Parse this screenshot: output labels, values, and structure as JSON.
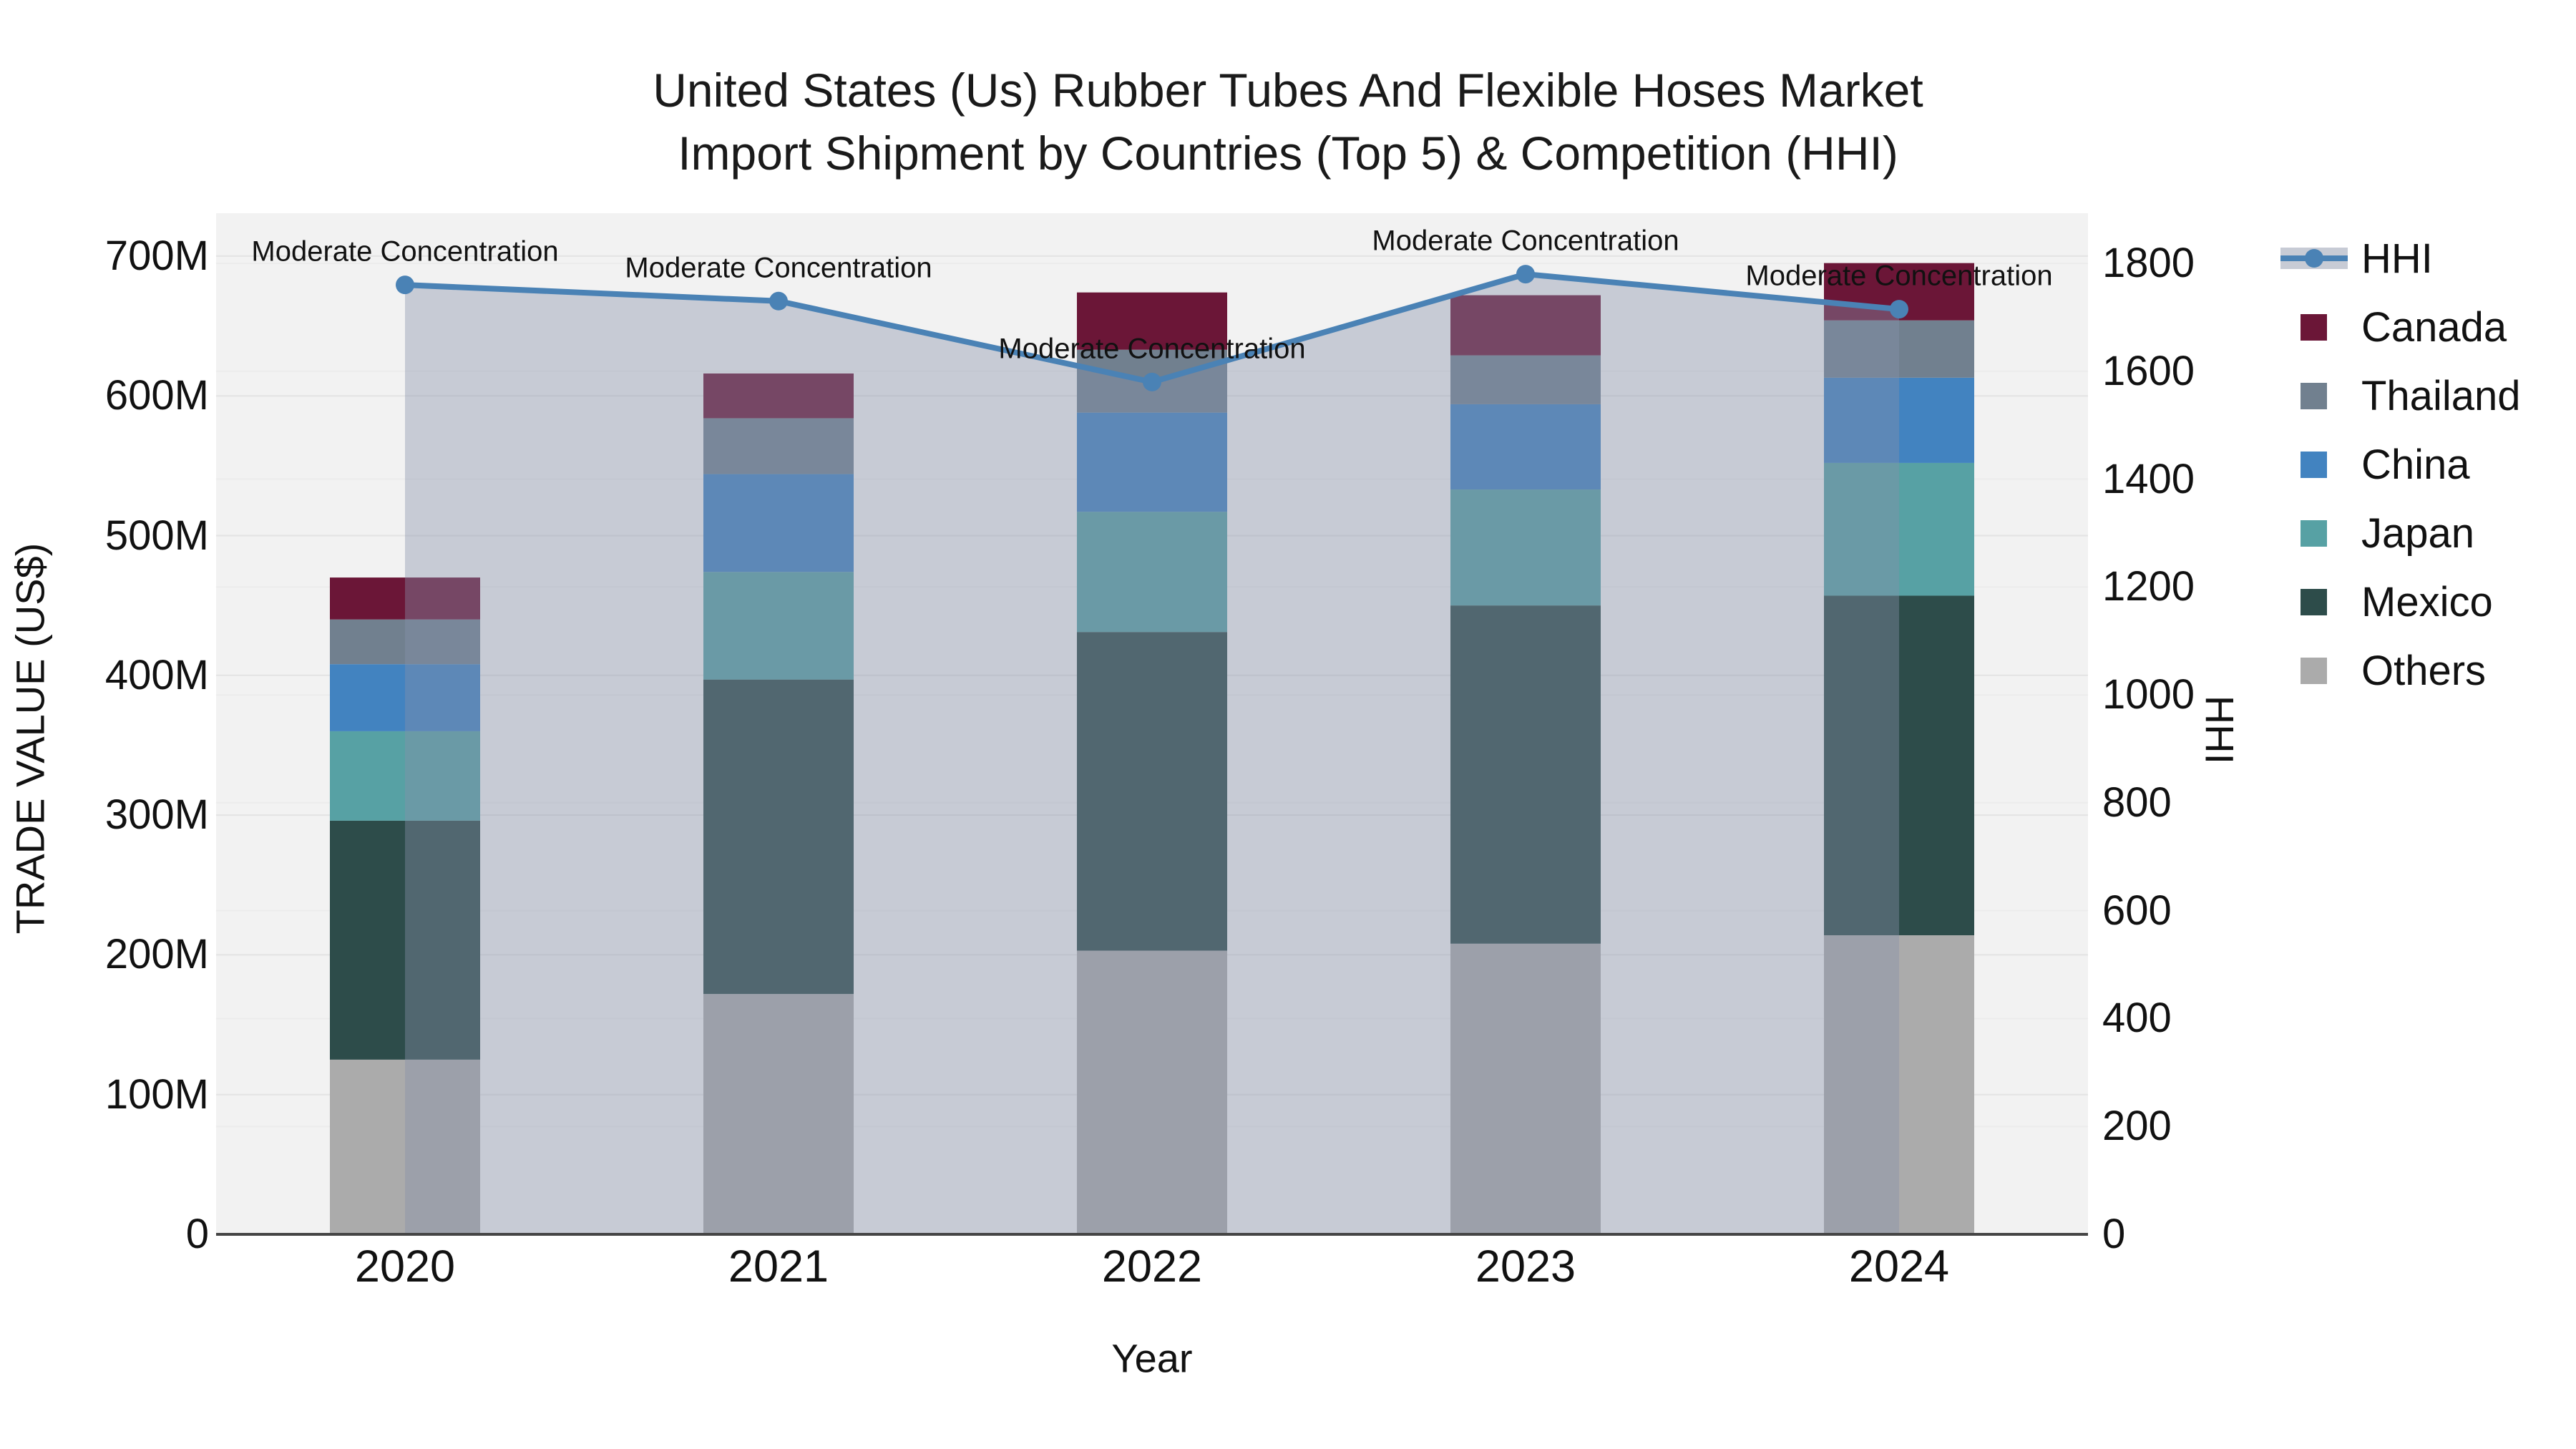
{
  "title": {
    "line1": "United States (Us) Rubber Tubes And Flexible Hoses Market",
    "line2": "Import Shipment by Countries (Top 5) & Competition (HHI)"
  },
  "axes": {
    "left": {
      "title": "TRADE VALUE (US$)",
      "tick_labels": [
        "0",
        "100M",
        "200M",
        "300M",
        "400M",
        "500M",
        "600M",
        "700M"
      ]
    },
    "right": {
      "title": "HHI",
      "tick_labels": [
        "0",
        "200",
        "400",
        "600",
        "800",
        "1000",
        "1200",
        "1400",
        "1600",
        "1800"
      ]
    },
    "x": {
      "title": "Year",
      "categories": [
        "2020",
        "2021",
        "2022",
        "2023",
        "2024"
      ]
    }
  },
  "legend": {
    "items": [
      {
        "label": "HHI",
        "type": "line",
        "color": "#4A82B5"
      },
      {
        "label": "Canada",
        "type": "swatch",
        "color": "#6B1637"
      },
      {
        "label": "Thailand",
        "type": "swatch",
        "color": "#71808F"
      },
      {
        "label": "China",
        "type": "swatch",
        "color": "#4283C0"
      },
      {
        "label": "Japan",
        "type": "swatch",
        "color": "#57A1A4"
      },
      {
        "label": "Mexico",
        "type": "swatch",
        "color": "#2D4C4A"
      },
      {
        "label": "Others",
        "type": "swatch",
        "color": "#ABABAB"
      }
    ]
  },
  "annotations": [
    "Moderate Concentration",
    "Moderate Concentration",
    "Moderate Concentration",
    "Moderate Concentration",
    "Moderate Concentration"
  ],
  "colors": {
    "hhi_line": "#4A82B5",
    "hhi_fill": "rgba(134,144,170,0.40)",
    "plot_bg": "#F2F2F2",
    "grid_left_axis": "#E3E3E3",
    "grid_right_axis": "#ECECEC",
    "axis_line": "#454545",
    "text": "#111111",
    "legend_band": "#C7CBD5"
  },
  "chart_data": {
    "type": "stacked-bar+line",
    "title": "United States (Us) Rubber Tubes And Flexible Hoses Market Import Shipment by Countries (Top 5) & Competition (HHI)",
    "categories": [
      "2020",
      "2021",
      "2022",
      "2023",
      "2024"
    ],
    "unit": "Million US$",
    "stack_order_bottom_to_top": [
      "Others",
      "Mexico",
      "Japan",
      "China",
      "Thailand",
      "Canada"
    ],
    "series": [
      {
        "name": "Others",
        "color": "#ABABAB",
        "values": [
          125,
          172,
          203,
          208,
          214
        ]
      },
      {
        "name": "Mexico",
        "color": "#2D4C4A",
        "values": [
          171,
          225,
          228,
          242,
          243
        ]
      },
      {
        "name": "Japan",
        "color": "#57A1A4",
        "values": [
          64,
          77,
          86,
          83,
          95
        ]
      },
      {
        "name": "China",
        "color": "#4283C0",
        "values": [
          48,
          70,
          71,
          61,
          61
        ]
      },
      {
        "name": "Thailand",
        "color": "#71808F",
        "values": [
          32,
          40,
          45,
          35,
          41
        ]
      },
      {
        "name": "Canada",
        "color": "#6B1637",
        "values": [
          30,
          32,
          41,
          43,
          41
        ]
      }
    ],
    "bar_totals": [
      470,
      616,
      674,
      672,
      695
    ],
    "line_series": {
      "name": "HHI",
      "axis": "right",
      "values": [
        1760,
        1730,
        1580,
        1780,
        1715
      ],
      "marker": "circle",
      "fill": "tozeroy"
    },
    "xlabel": "Year",
    "ylabel_left": "TRADE VALUE (US$)",
    "ylim_left": [
      0,
      730
    ],
    "ylabel_right": "HHI",
    "ylim_right": [
      0,
      1870
    ],
    "grid": true,
    "legend_position": "right"
  }
}
